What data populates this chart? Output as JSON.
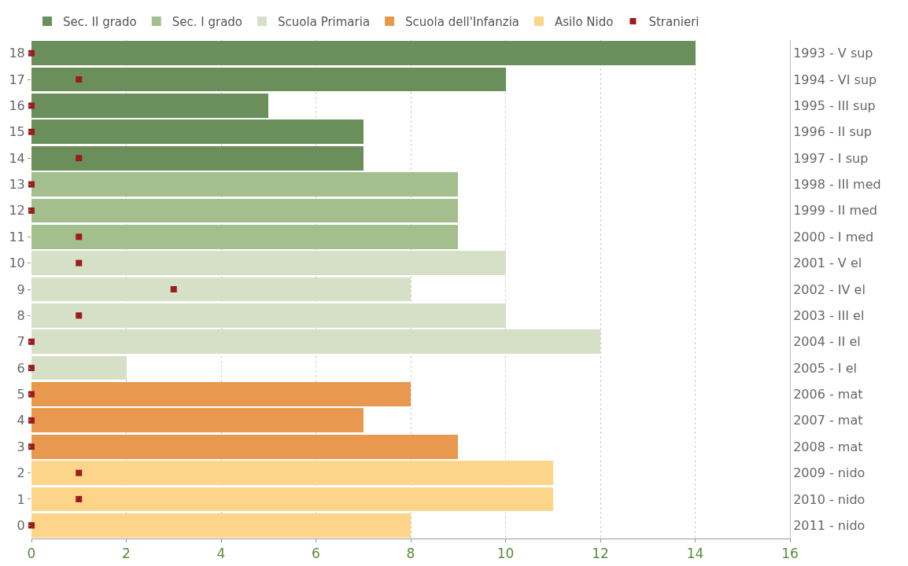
{
  "chart_data": {
    "type": "bar",
    "orientation": "horizontal",
    "stacked": true,
    "categories": [
      "18",
      "17",
      "16",
      "15",
      "14",
      "13",
      "12",
      "11",
      "10",
      "9",
      "8",
      "7",
      "6",
      "5",
      "4",
      "3",
      "2",
      "1",
      "0"
    ],
    "y2_categories": [
      "1993 - V sup",
      "1994 - VI sup",
      "1995 - III sup",
      "1996 - II sup",
      "1997 - I sup",
      "1998 - III med",
      "1999 - II med",
      "2000 - I med",
      "2001 - V el",
      "2002 - IV el",
      "2003 - III el",
      "2004 - II el",
      "2005 - I el",
      "2006 - mat",
      "2007 - mat",
      "2008 - mat",
      "2009 - nido",
      "2010 - nido",
      "2011 - nido"
    ],
    "series": [
      {
        "name": "Sec. II grado",
        "color": "#6b8f5a",
        "values": [
          14,
          10,
          5,
          7,
          7,
          null,
          null,
          null,
          null,
          null,
          null,
          null,
          null,
          null,
          null,
          null,
          null,
          null,
          null
        ]
      },
      {
        "name": "Sec. I grado",
        "color": "#a3bf8e",
        "values": [
          null,
          null,
          null,
          null,
          null,
          9,
          9,
          9,
          null,
          null,
          null,
          null,
          null,
          null,
          null,
          null,
          null,
          null,
          null
        ]
      },
      {
        "name": "Scuola Primaria",
        "color": "#d5e0c6",
        "values": [
          null,
          null,
          null,
          null,
          null,
          null,
          null,
          null,
          10,
          8,
          10,
          12,
          2,
          null,
          null,
          null,
          null,
          null,
          null
        ]
      },
      {
        "name": "Scuola dell'Infanzia",
        "color": "#e8994f",
        "values": [
          null,
          null,
          null,
          null,
          null,
          null,
          null,
          null,
          null,
          null,
          null,
          null,
          null,
          8,
          7,
          9,
          null,
          null,
          null
        ]
      },
      {
        "name": "Asilo Nido",
        "color": "#fcd58a",
        "values": [
          null,
          null,
          null,
          null,
          null,
          null,
          null,
          null,
          null,
          null,
          null,
          null,
          null,
          null,
          null,
          null,
          11,
          11,
          8
        ]
      },
      {
        "name": "Stranieri",
        "color": "#9b1c1c",
        "type": "scatter",
        "marker": "square",
        "values": [
          0,
          1,
          0,
          0,
          1,
          0,
          0,
          1,
          1,
          3,
          1,
          0,
          0,
          0,
          0,
          0,
          1,
          1,
          0
        ]
      }
    ],
    "xlim": [
      0,
      16
    ],
    "xticks": [
      0,
      2,
      4,
      6,
      8,
      10,
      12,
      14,
      16
    ],
    "grid": "x",
    "legend": "top"
  }
}
